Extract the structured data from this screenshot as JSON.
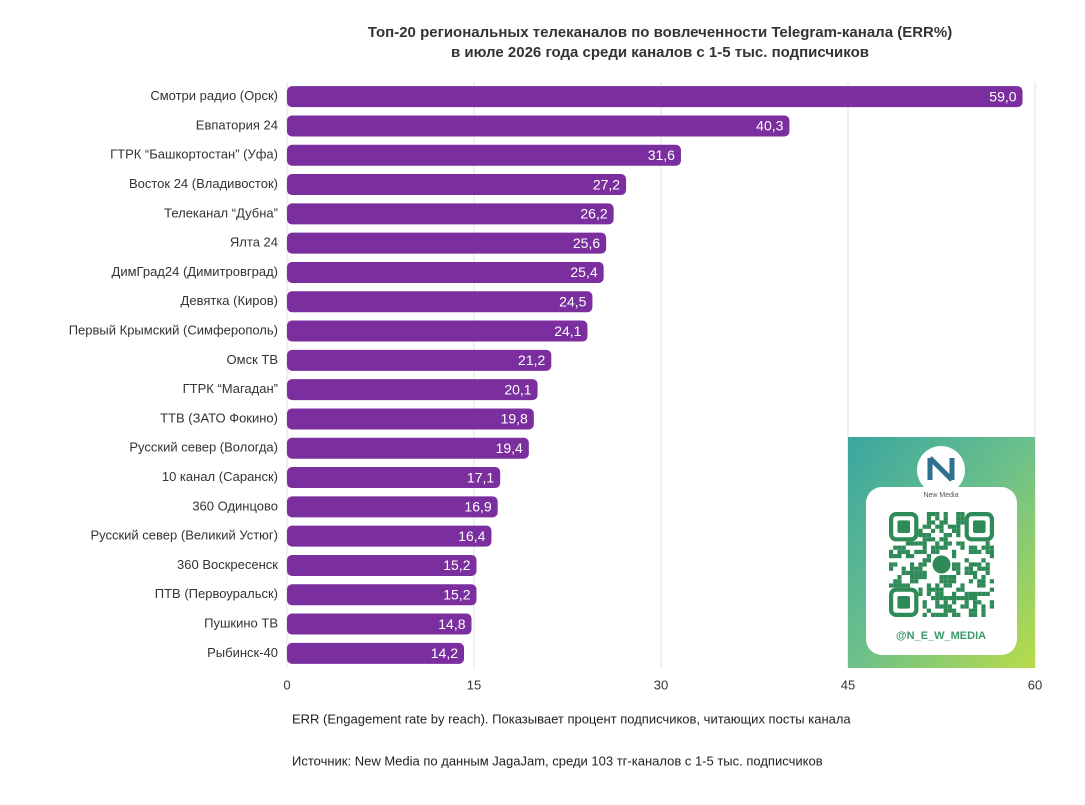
{
  "chart_data": {
    "type": "bar",
    "orientation": "horizontal",
    "title": [
      "Топ-20 региональных телеканалов по вовлеченности Telegram-канала (ERR%)",
      "в июле 2026 года среди каналов с 1-5 тыс. подписчиков"
    ],
    "categories": [
      "Смотри радио (Орск)",
      "Евпатория 24",
      "ГТРК “Башкортостан” (Уфа)",
      "Восток 24 (Владивосток)",
      "Телеканал “Дубна”",
      "Ялта 24",
      "ДимГрад24 (Димитровград)",
      "Девятка (Киров)",
      "Первый Крымский (Симферополь)",
      "Омск ТВ",
      "ГТРК “Магадан”",
      "ТТВ (ЗАТО Фокино)",
      "Русский север (Вологда)",
      "10 канал (Саранск)",
      "360 Одинцово",
      "Русский север (Великий Устюг)",
      "360 Воскресенск",
      "ПТВ (Первоуральск)",
      "Пушкино ТВ",
      "Рыбинск-40"
    ],
    "values": [
      59.0,
      40.3,
      31.6,
      27.2,
      26.2,
      25.6,
      25.4,
      24.5,
      24.1,
      21.2,
      20.1,
      19.8,
      19.4,
      17.1,
      16.9,
      16.4,
      15.2,
      15.2,
      14.8,
      14.2
    ],
    "value_labels": [
      "59,0",
      "40,3",
      "31,6",
      "27,2",
      "26,2",
      "25,6",
      "25,4",
      "24,5",
      "24,1",
      "21,2",
      "20,1",
      "19,8",
      "19,4",
      "17,1",
      "16,9",
      "16,4",
      "15,2",
      "15,2",
      "14,8",
      "14,2"
    ],
    "color": "#7b2f9e",
    "xlim": [
      0,
      60
    ],
    "xticks": [
      0,
      15,
      30,
      45,
      60
    ],
    "grid": true,
    "notes": [
      "ERR (Engagement rate by reach). Показывает процент подписчиков, читающих посты канала",
      "Источник: New Media по данным JagaJam, среди 103 тг-каналов с 1-5 тыс. подписчиков"
    ],
    "badge": {
      "logo_text": "New Media",
      "handle": "@N_E_W_MEDIA"
    }
  }
}
